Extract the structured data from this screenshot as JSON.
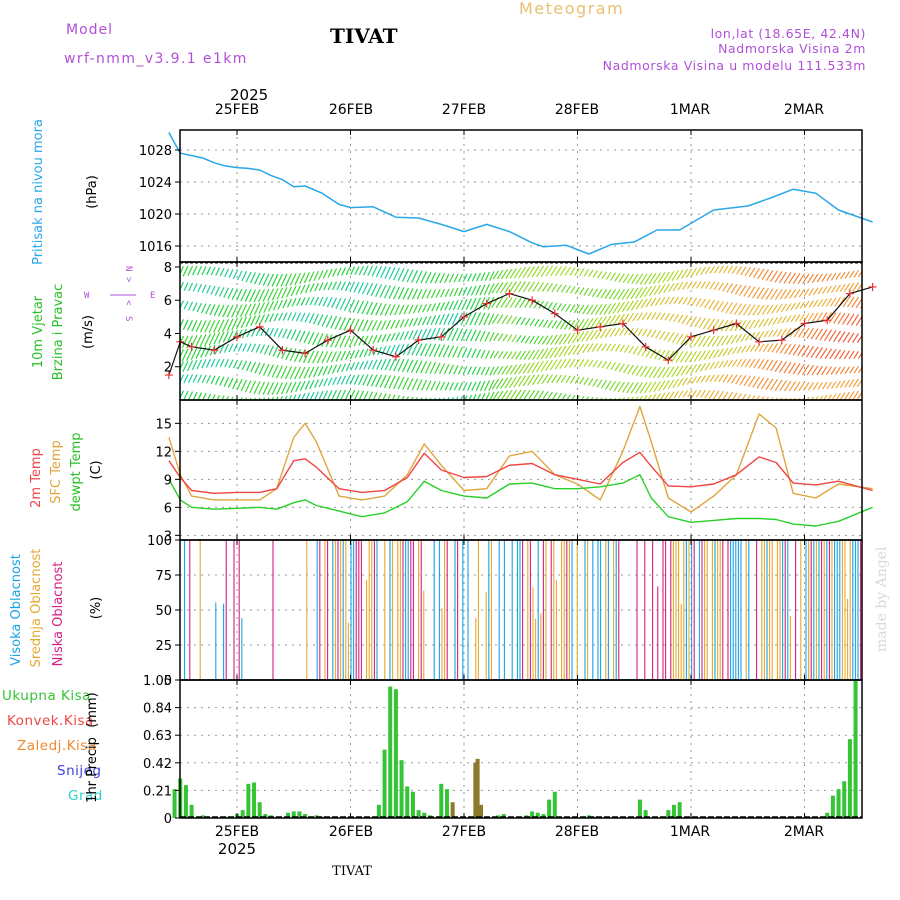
{
  "header": {
    "model_label": "Model",
    "model_name": "wrf-nmm_v3.9.1 e1km",
    "title": "TIVAT",
    "meteogram": "Meteogram",
    "lonlat": "lon,lat (18.65E, 42.4N)",
    "altitude": "Nadmorska Visina 2m",
    "model_altitude": "Nadmorska Visina u modelu 111.533m",
    "watermark": "made by Angel",
    "footer": "TIVAT"
  },
  "colors": {
    "pressure": "#2aa7e8",
    "temp": "#f04545",
    "sfc_temp": "#e0a53c",
    "dewpt": "#28d028",
    "cloud_high": "#1aa4e6",
    "cloud_mid": "#e6a830",
    "cloud_low": "#d6207f",
    "precip": "#35c435",
    "purple": "#b050d8",
    "frame": "#000000"
  },
  "time_axis": {
    "year_top": "2025",
    "year_bottom": "2025",
    "ticks": [
      "25FEB",
      "26FEB",
      "27FEB",
      "28FEB",
      "1MAR",
      "2MAR"
    ]
  },
  "chart_data": [
    {
      "type": "line",
      "id": "pressure",
      "ylabel": "Pritisak na nivou mora",
      "unit": "(hPa)",
      "yticks": [
        1016,
        1020,
        1024,
        1028
      ],
      "ylim": [
        1014,
        1030.5
      ],
      "x": [
        -0.6,
        -0.57,
        -0.5,
        -0.4,
        -0.3,
        -0.2,
        -0.1,
        0.0,
        0.1,
        0.2,
        0.3,
        0.4,
        0.5,
        0.6,
        0.75,
        0.9,
        1.0,
        1.2,
        1.4,
        1.6,
        1.8,
        2.0,
        2.2,
        2.4,
        2.6,
        2.7,
        2.9,
        3.1,
        3.3,
        3.5,
        3.7,
        3.9,
        4.2,
        4.5,
        4.7,
        4.9,
        5.1,
        5.3,
        5.6
      ],
      "series": [
        {
          "values": [
            1030.2,
            1029.4,
            1027.6,
            1027.3,
            1027.0,
            1026.4,
            1026.0,
            1025.8,
            1025.7,
            1025.5,
            1024.8,
            1024.3,
            1023.4,
            1023.5,
            1022.6,
            1021.2,
            1020.8,
            1020.9,
            1019.6,
            1019.5,
            1018.7,
            1017.8,
            1018.7,
            1017.8,
            1016.4,
            1015.9,
            1016.1,
            1015.0,
            1016.2,
            1016.5,
            1018.0,
            1018.0,
            1020.5,
            1021.0,
            1022.0,
            1023.1,
            1022.6,
            1020.5,
            1019.0
          ]
        }
      ]
    },
    {
      "type": "line",
      "id": "wind",
      "ylabel": "10m Vjetar",
      "ylabel2": "Brzina i Pravac",
      "unit": "(m/s)",
      "compass": {
        "n": "N",
        "w": "W",
        "e": "E",
        "s": "S",
        "arrow_l": "<",
        "arrow_r": ">"
      },
      "yticks": [
        2,
        4,
        6,
        8
      ],
      "ylim": [
        0,
        8.3
      ],
      "x": [
        -0.6,
        -0.5,
        -0.4,
        -0.2,
        0.0,
        0.2,
        0.4,
        0.6,
        0.8,
        1.0,
        1.2,
        1.4,
        1.6,
        1.8,
        2.0,
        2.2,
        2.4,
        2.6,
        2.8,
        3.0,
        3.2,
        3.4,
        3.6,
        3.8,
        4.0,
        4.2,
        4.4,
        4.6,
        4.8,
        5.0,
        5.2,
        5.4,
        5.6
      ],
      "series": [
        {
          "values": [
            1.5,
            3.5,
            3.2,
            3.0,
            3.8,
            4.4,
            3.0,
            2.8,
            3.6,
            4.2,
            3.0,
            2.6,
            3.6,
            3.8,
            5.0,
            5.8,
            6.4,
            6.0,
            5.2,
            4.2,
            4.4,
            4.6,
            3.2,
            2.4,
            3.8,
            4.2,
            4.6,
            3.5,
            3.6,
            4.6,
            4.8,
            6.4,
            6.8
          ]
        }
      ]
    },
    {
      "type": "line",
      "id": "temperature",
      "ylabel": "2m Temp",
      "ylabel2": "SFC Temp",
      "ylabel3": "dewpt Temp",
      "unit": "(C)",
      "yticks": [
        3,
        6,
        9,
        12,
        15
      ],
      "ylim": [
        2.5,
        17.5
      ],
      "x": [
        -0.6,
        -0.5,
        -0.4,
        -0.2,
        0.0,
        0.2,
        0.35,
        0.5,
        0.6,
        0.7,
        0.9,
        1.1,
        1.3,
        1.5,
        1.65,
        1.8,
        2.0,
        2.2,
        2.4,
        2.6,
        2.8,
        3.0,
        3.2,
        3.4,
        3.55,
        3.65,
        3.8,
        4.0,
        4.2,
        4.4,
        4.6,
        4.75,
        4.9,
        5.1,
        5.3,
        5.6
      ],
      "series": [
        {
          "name": "2m Temp",
          "values": [
            11.0,
            9.2,
            7.8,
            7.5,
            7.6,
            7.6,
            8.0,
            11.0,
            11.2,
            10.3,
            8.0,
            7.6,
            7.8,
            9.2,
            11.8,
            10.0,
            9.2,
            9.3,
            10.5,
            10.7,
            9.5,
            9.0,
            8.5,
            10.8,
            11.9,
            10.4,
            8.3,
            8.2,
            8.5,
            9.5,
            11.4,
            10.8,
            8.6,
            8.4,
            8.8,
            7.8
          ]
        },
        {
          "name": "SFC Temp",
          "values": [
            13.5,
            9.5,
            7.2,
            6.8,
            6.8,
            6.8,
            8.0,
            13.5,
            15.0,
            13.0,
            7.2,
            6.8,
            7.2,
            9.5,
            12.8,
            10.5,
            7.8,
            8.0,
            11.5,
            12.0,
            9.5,
            8.5,
            6.8,
            12.0,
            16.8,
            13.0,
            7.0,
            5.5,
            7.2,
            9.5,
            16.0,
            14.5,
            7.5,
            7.0,
            8.5,
            8.0
          ]
        },
        {
          "name": "dewpt Temp",
          "values": [
            9.0,
            6.8,
            6.0,
            5.8,
            5.9,
            6.0,
            5.8,
            6.5,
            6.8,
            6.2,
            5.6,
            5.0,
            5.4,
            6.6,
            8.8,
            7.8,
            7.2,
            7.0,
            8.5,
            8.6,
            8.0,
            8.0,
            8.2,
            8.6,
            9.5,
            7.0,
            5.0,
            4.4,
            4.6,
            4.8,
            4.8,
            4.7,
            4.2,
            4.0,
            4.5,
            6.0
          ]
        }
      ]
    },
    {
      "type": "bar",
      "id": "clouds",
      "ylabel": "Visoka Oblacnost",
      "ylabel2": "Srednja Oblacnost",
      "ylabel3": "Niska Oblacnost",
      "unit": "(%)",
      "yticks": [
        0,
        25,
        50,
        75,
        100
      ],
      "ylim": [
        0,
        100
      ]
    },
    {
      "type": "bar",
      "id": "precip",
      "ylabel": "1hr Precip",
      "unit": "(mm)",
      "legend": [
        "Ukupna Kisa",
        "Konvek.Kisa",
        "Zaledj.Kisa",
        "Snijeg",
        "Grad"
      ],
      "legend_colors": [
        "#35c435",
        "#f04545",
        "#f08a30",
        "#4040e0",
        "#30d0c8"
      ],
      "yticks": [
        "0",
        "0.21",
        "0.42",
        "0.63",
        "0.84",
        "1.05"
      ],
      "ylim": [
        0,
        1.05
      ],
      "x": [
        -0.55,
        -0.5,
        -0.45,
        -0.4,
        -0.3,
        -0.1,
        0.0,
        0.05,
        0.1,
        0.15,
        0.2,
        0.25,
        0.3,
        0.35,
        0.45,
        0.5,
        0.55,
        0.6,
        0.65,
        0.7,
        0.75,
        1.25,
        1.3,
        1.35,
        1.4,
        1.45,
        1.5,
        1.55,
        1.6,
        1.65,
        1.7,
        1.8,
        1.85,
        1.9,
        2.1,
        2.12,
        2.15,
        2.3,
        2.35,
        2.5,
        2.55,
        2.6,
        2.65,
        2.7,
        2.75,
        2.8,
        3.1,
        3.15,
        3.55,
        3.6,
        3.8,
        3.85,
        3.9,
        5.2,
        5.25,
        5.3,
        5.35,
        5.4,
        5.45
      ],
      "values": [
        0.22,
        0.3,
        0.25,
        0.1,
        0.02,
        0.01,
        0.03,
        0.06,
        0.26,
        0.27,
        0.12,
        0.03,
        0.02,
        0.01,
        0.04,
        0.05,
        0.05,
        0.03,
        0.01,
        0.02,
        0.01,
        0.1,
        0.52,
        1.0,
        0.98,
        0.44,
        0.24,
        0.2,
        0.06,
        0.04,
        0.02,
        0.26,
        0.22,
        0.12,
        0.42,
        0.45,
        0.1,
        0.02,
        0.03,
        0.01,
        0.02,
        0.05,
        0.04,
        0.03,
        0.14,
        0.2,
        0.02,
        0.01,
        0.14,
        0.06,
        0.06,
        0.1,
        0.12,
        0.04,
        0.17,
        0.22,
        0.28,
        0.6,
        1.05
      ]
    }
  ]
}
